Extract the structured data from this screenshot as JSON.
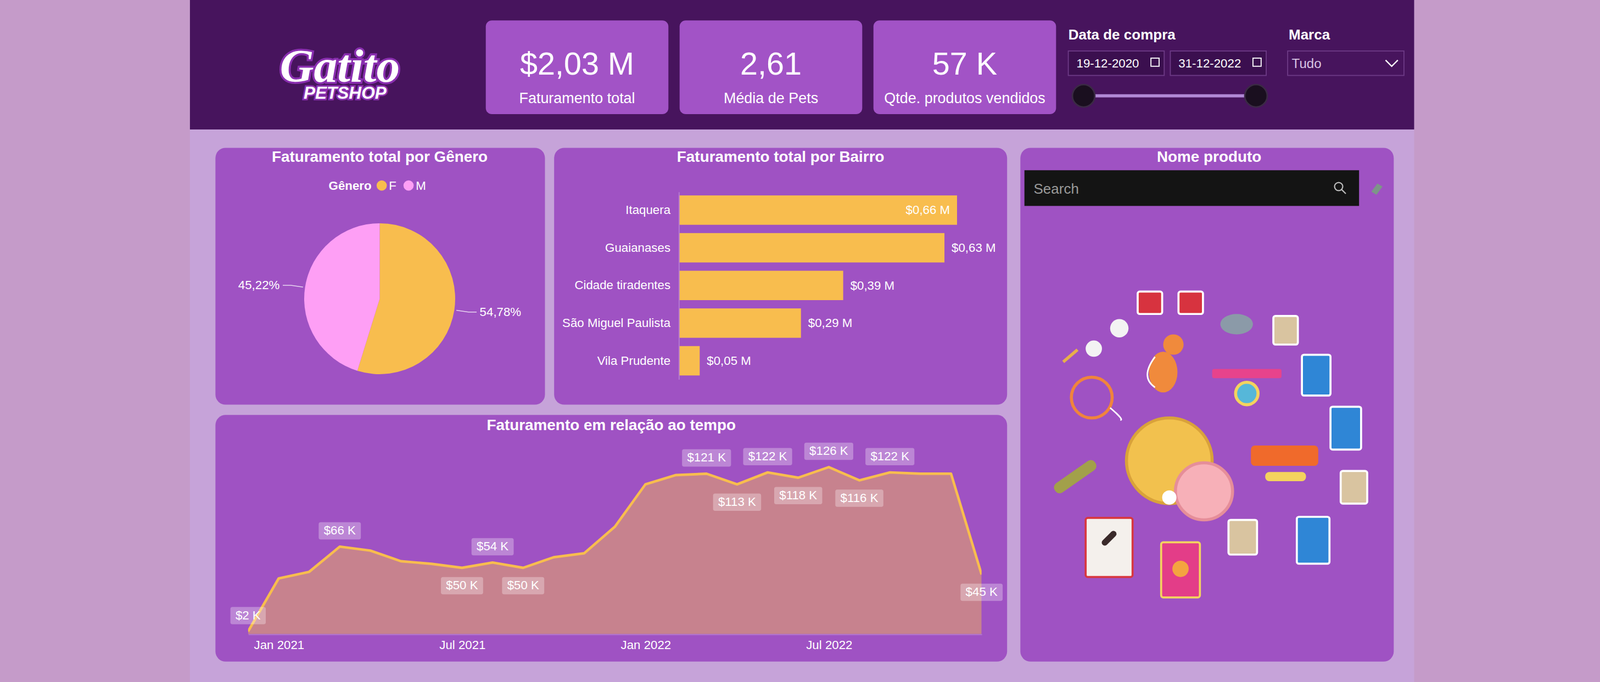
{
  "header": {
    "logo": {
      "title": "Gatito",
      "subtitle": "PETSHOP"
    },
    "kpis": [
      {
        "value": "$2,03 M",
        "label": "Faturamento total"
      },
      {
        "value": "2,61",
        "label": "Média de Pets"
      },
      {
        "value": "57 K",
        "label": "Qtde. produtos vendidos"
      }
    ],
    "filters": {
      "date": {
        "label": "Data de compra",
        "start": "19-12-2020",
        "end": "31-12-2022"
      },
      "brand": {
        "label": "Marca",
        "selected": "Tudo"
      }
    }
  },
  "chart_data": [
    {
      "type": "pie",
      "title": "Faturamento total por Gênero",
      "legend_title": "Gênero",
      "legend": "top",
      "categories": [
        "F",
        "M"
      ],
      "values": [
        54.78,
        45.22
      ],
      "value_labels": [
        "54,78%",
        "45,22%"
      ],
      "colors": [
        "#f8bd4e",
        "#fe9ff5"
      ],
      "data_labels": true
    },
    {
      "type": "bar",
      "title": "Faturamento total por Bairro",
      "orientation": "horizontal",
      "categories": [
        "Itaquera",
        "Guaianases",
        "Cidade tiradentes",
        "São Miguel Paulista",
        "Vila Prudente"
      ],
      "values": [
        0.66,
        0.63,
        0.39,
        0.29,
        0.05
      ],
      "value_labels": [
        "$0,66 M",
        "$0,63 M",
        "$0,39 M",
        "$0,29 M",
        "$0,05 M"
      ],
      "color": "#f8bd4e",
      "xlim": [
        0,
        0.66
      ],
      "data_labels": true,
      "tick_labels": "y"
    },
    {
      "type": "area",
      "title": "Faturamento em relação ao tempo",
      "categories": [
        null,
        "Jan 2021",
        null,
        null,
        null,
        null,
        null,
        "Jul 2021",
        null,
        null,
        null,
        null,
        null,
        "Jan 2022",
        null,
        null,
        null,
        null,
        null,
        "Jul 2022",
        null,
        null,
        null,
        null,
        null
      ],
      "values": [
        2,
        42,
        47,
        66,
        63,
        55,
        53,
        50,
        54,
        50,
        58,
        61,
        81,
        113,
        120,
        121,
        113,
        122,
        118,
        126,
        116,
        122,
        121,
        121,
        45
      ],
      "value_labels": [
        "$2 K",
        null,
        null,
        "$66 K",
        null,
        null,
        null,
        "$50 K",
        "$54 K",
        "$50 K",
        null,
        null,
        null,
        null,
        null,
        "$121 K",
        "$113 K",
        "$122 K",
        "$118 K",
        "$126 K",
        "$116 K",
        "$122 K",
        null,
        null,
        "$45 K"
      ],
      "color": "#f8bd4e",
      "ylim": [
        0,
        135
      ],
      "data_labels": true,
      "tick_labels": "x"
    }
  ],
  "product_panel": {
    "title": "Nome produto",
    "search_placeholder": "Search"
  }
}
